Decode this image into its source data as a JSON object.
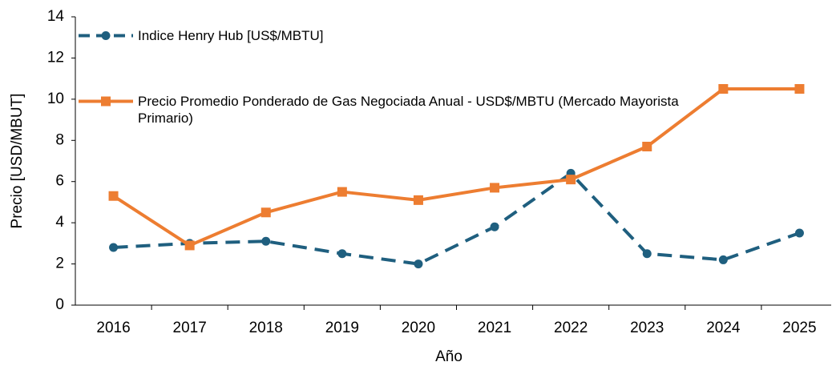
{
  "chart_data": {
    "type": "line",
    "categories": [
      "2016",
      "2017",
      "2018",
      "2019",
      "2020",
      "2021",
      "2022",
      "2023",
      "2024",
      "2025"
    ],
    "series": [
      {
        "name": "Indice Henry Hub [US$/MBTU]",
        "color": "#1f5f7f",
        "dashed": true,
        "marker": "circle",
        "values": [
          2.8,
          3.0,
          3.1,
          2.5,
          2.0,
          3.8,
          6.4,
          2.5,
          2.2,
          3.5
        ]
      },
      {
        "name": "Precio Promedio Ponderado de Gas Negociada Anual - USD$/MBTU (Mercado Mayorista Primario)",
        "color": "#ed7d31",
        "dashed": false,
        "marker": "square",
        "values": [
          5.3,
          2.9,
          4.5,
          5.5,
          5.1,
          5.7,
          6.1,
          7.7,
          10.5,
          10.5
        ]
      }
    ],
    "x_label": "Año",
    "y_label": "Precio [USD/MBUT]",
    "ylim": [
      0,
      14
    ],
    "yticks": [
      0,
      2,
      4,
      6,
      8,
      10,
      12,
      14
    ],
    "grid": false,
    "legend": "upper left"
  }
}
